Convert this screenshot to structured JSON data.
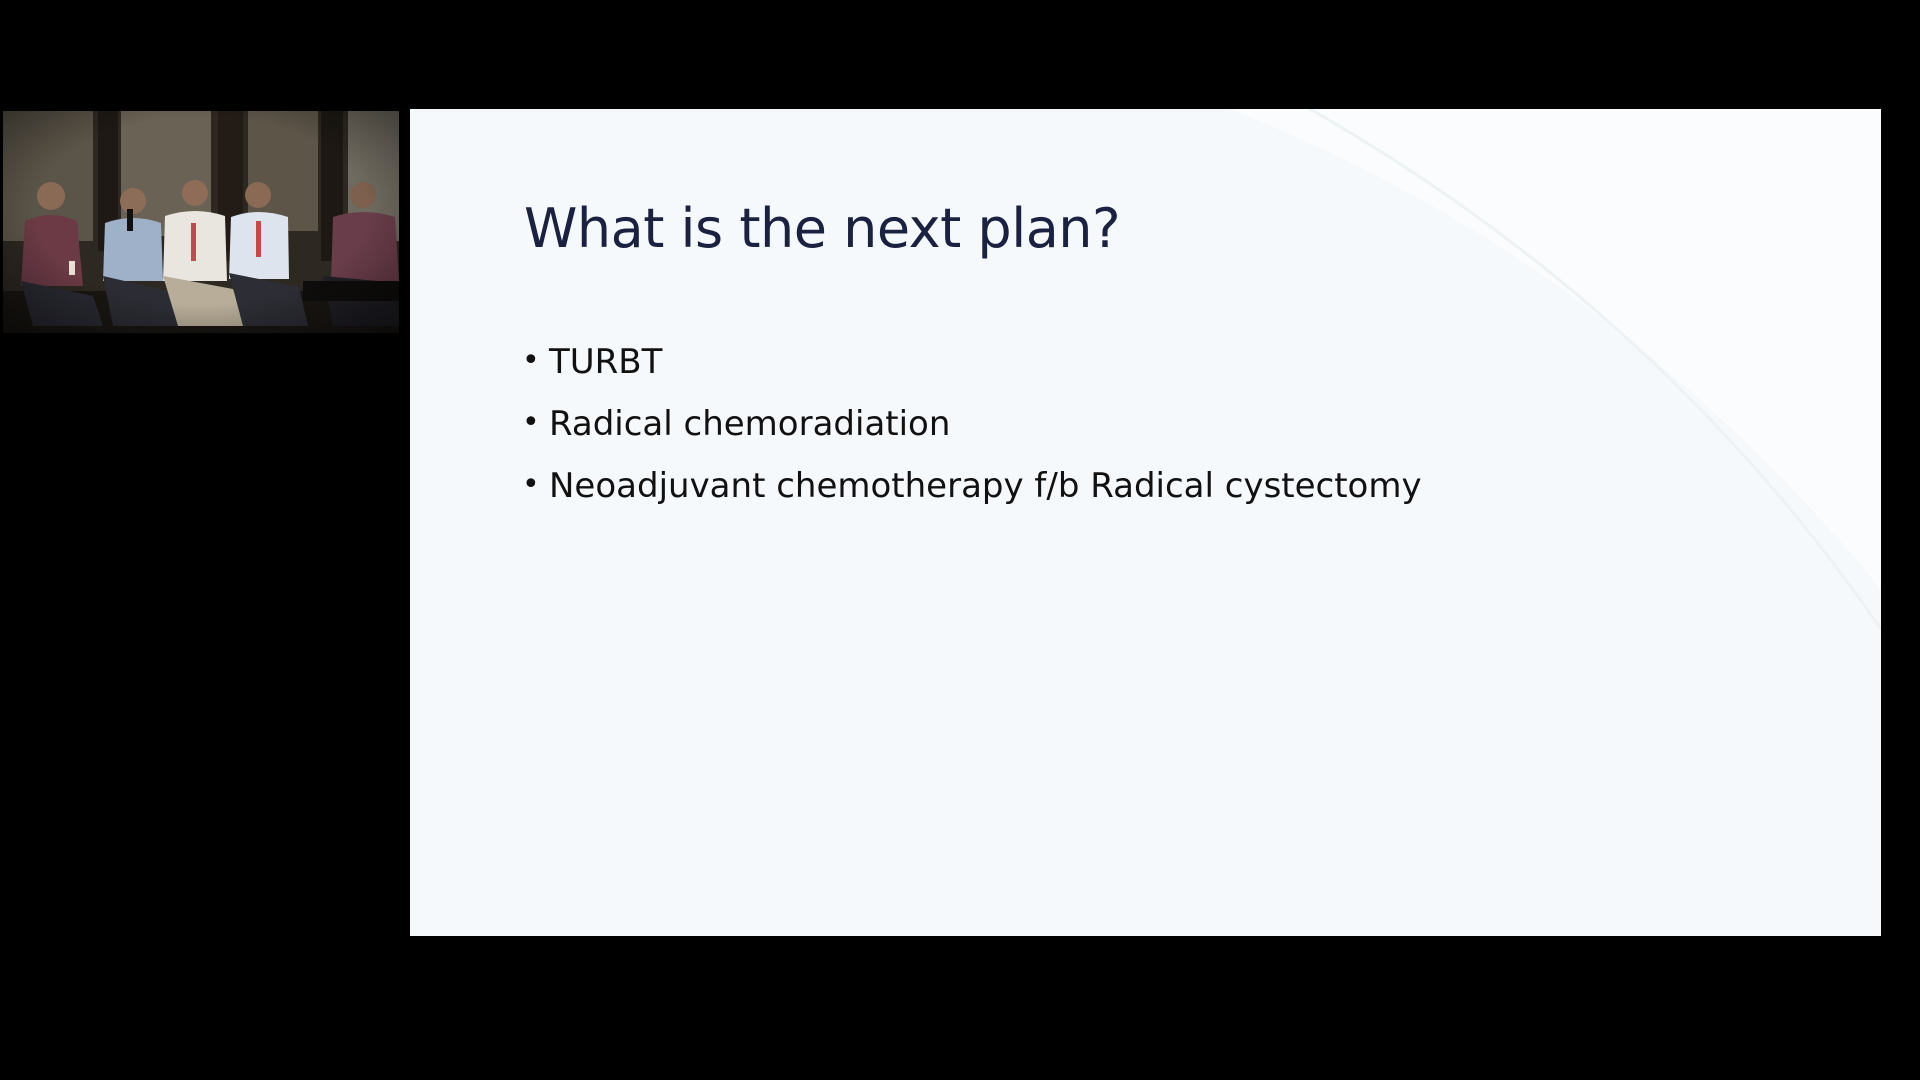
{
  "slide": {
    "title": "What is the next plan?",
    "bullets": [
      "TURBT",
      "Radical chemoradiation",
      "Neoadjuvant chemotherapy f/b Radical cystectomy"
    ],
    "bullet_glyph": "•"
  },
  "colors": {
    "background": "#000000",
    "slide_background": "#f6f9fb",
    "title": "#1b2140",
    "body_text": "#111111"
  }
}
